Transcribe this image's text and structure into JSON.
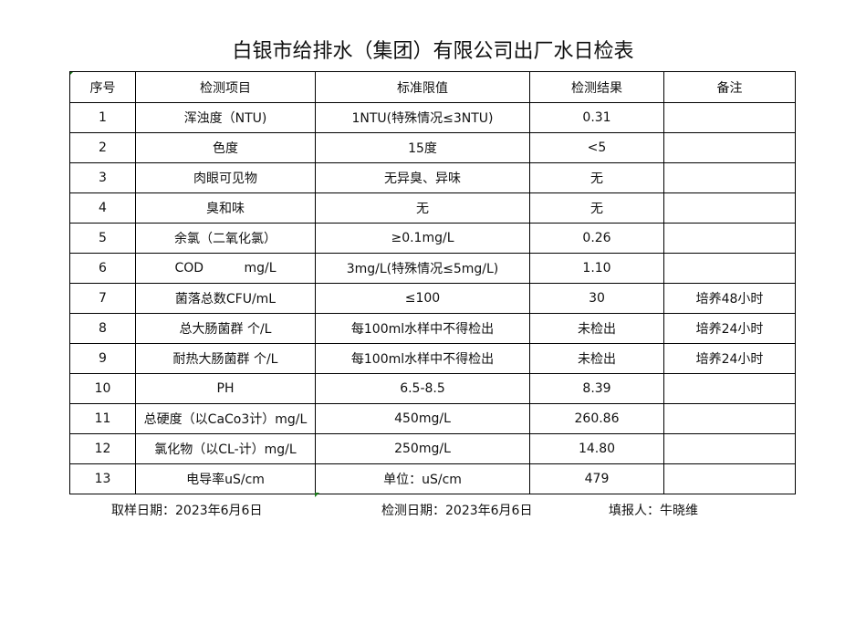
{
  "title": "白银市给排水（集团）有限公司出厂水日检表",
  "headers": [
    "序号",
    "检测项目",
    "标准限值",
    "检测结果",
    "备注"
  ],
  "rows": [
    [
      "1",
      "浑浊度（NTU)",
      "1NTU(特殊情况≤3NTU)",
      "0.31",
      ""
    ],
    [
      "2",
      "色度",
      "15度",
      "<5",
      ""
    ],
    [
      "3",
      "肉眼可见物",
      "无异臭、异味",
      "无",
      ""
    ],
    [
      "4",
      "臭和味",
      "无",
      "无",
      ""
    ],
    [
      "5",
      "余氯（二氧化氯）",
      "≥0.1mg/L",
      "0.26",
      ""
    ],
    [
      "6",
      "COD          mg/L",
      "3mg/L(特殊情况≤5mg/L)",
      "1.10",
      ""
    ],
    [
      "7",
      "菌落总数CFU/mL",
      "≤100",
      "30",
      "培养48小时"
    ],
    [
      "8",
      "总大肠菌群 个/L",
      "每100ml水样中不得检出",
      "未检出",
      "培养24小时"
    ],
    [
      "9",
      "耐热大肠菌群 个/L",
      "每100ml水样中不得检出",
      "未检出",
      "培养24小时"
    ],
    [
      "10",
      "PH",
      "6.5-8.5",
      "8.39",
      ""
    ],
    [
      "11",
      "总硬度（以CaCo3计）mg/L",
      "450mg/L",
      "260.86",
      ""
    ],
    [
      "12",
      "氯化物（以CL-计）mg/L",
      "250mg/L",
      "14.80",
      ""
    ],
    [
      "13",
      "电导率uS/cm",
      "单位：uS/cm",
      "479",
      ""
    ]
  ],
  "footer": {
    "sample_date": "取样日期：2023年6月6日",
    "test_date": "检测日期：2023年6月6日",
    "reporter": "填报人：牛晓维"
  }
}
